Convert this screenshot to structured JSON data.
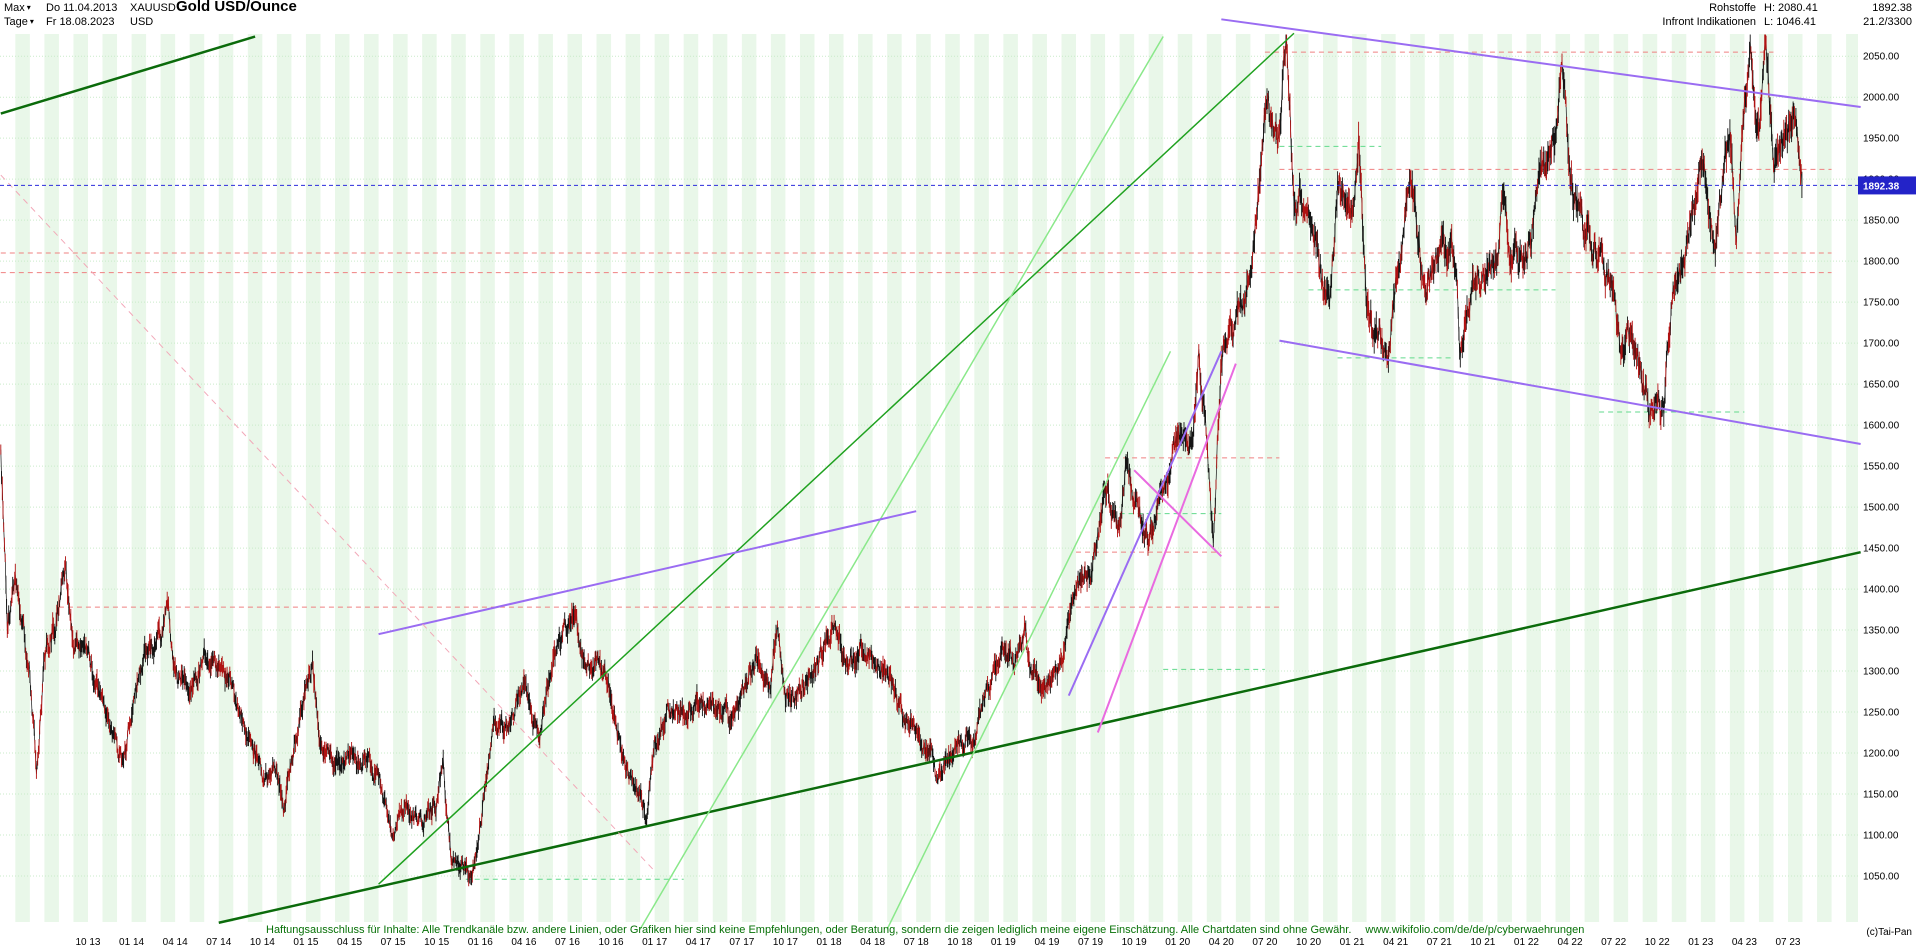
{
  "header": {
    "range_label": "Max",
    "date_from": "Do 11.04.2013",
    "symbol": "XAUUSD",
    "period_label": "Tage",
    "date_to": "Fr 18.08.2023",
    "currency": "USD",
    "title": "Gold USD/Ounce",
    "category": "Rohstoffe",
    "provider": "Infront Indikationen",
    "high_label": "H: 2080.41",
    "low_label": "L: 1046.41",
    "last_price": "1892.38",
    "indication": "21.2/3300"
  },
  "footer": {
    "disclaimer": "Haftungsausschluss für Inhalte: Alle Trendkanäle bzw. andere Linien, oder Grafiken hier sind keine Empfehlungen, oder Beratung, sondern die zeigen lediglich meine eigene Einschätzung. Alle Chartdaten sind ohne Gewähr.",
    "url": "www.wikifolio.com/de/de/p/cyberwaehrungen",
    "copyright": "(c)Tai-Pan"
  },
  "axis": {
    "price_ticks": [
      "2050.00",
      "2000.00",
      "1950.00",
      "1900.00",
      "1850.00",
      "1800.00",
      "1750.00",
      "1700.00",
      "1650.00",
      "1600.00",
      "1550.00",
      "1500.00",
      "1450.00",
      "1400.00",
      "1350.00",
      "1300.00",
      "1250.00",
      "1200.00",
      "1150.00",
      "1100.00",
      "1050.00"
    ],
    "date_ticks": [
      "10 13",
      "01 14",
      "04 14",
      "07 14",
      "10 14",
      "01 15",
      "04 15",
      "07 15",
      "10 15",
      "01 16",
      "04 16",
      "07 16",
      "10 16",
      "01 17",
      "04 17",
      "07 17",
      "10 17",
      "01 18",
      "04 18",
      "07 18",
      "10 18",
      "01 19",
      "04 19",
      "07 19",
      "10 19",
      "01 20",
      "04 20",
      "07 20",
      "10 20",
      "01 21",
      "04 21",
      "07 21",
      "10 21",
      "01 22",
      "04 22",
      "07 22",
      "10 22",
      "01 23",
      "04 23",
      "07 23"
    ],
    "current_price": "1892.38"
  },
  "chart_data": {
    "type": "candlestick",
    "instrument": "XAUUSD",
    "title": "Gold USD/Ounce",
    "period": "daily",
    "x_range": [
      "2013-04-11",
      "2023-08-18"
    ],
    "month_index_origin": "2013-04",
    "y_visible": [
      993,
      2077
    ],
    "high": 2080.41,
    "low": 1046.41,
    "last": 1892.38,
    "monthly_format": [
      "month",
      "close",
      "high_spike(0=none)",
      "low_spike(0=none)"
    ],
    "monthly": [
      [
        "2013-04",
        1560,
        0,
        1355
      ],
      [
        "2013-05",
        1415,
        0,
        0
      ],
      [
        "2013-06",
        1300,
        0,
        1180
      ],
      [
        "2013-07",
        1315,
        0,
        0
      ],
      [
        "2013-08",
        1370,
        1418,
        0
      ],
      [
        "2013-09",
        1330,
        0,
        0
      ],
      [
        "2013-10",
        1335,
        0,
        0
      ],
      [
        "2013-11",
        1255,
        0,
        0
      ],
      [
        "2013-12",
        1210,
        0,
        1182
      ],
      [
        "2014-01",
        1250,
        0,
        0
      ],
      [
        "2014-02",
        1325,
        0,
        0
      ],
      [
        "2014-03",
        1335,
        1385,
        0
      ],
      [
        "2014-04",
        1295,
        0,
        0
      ],
      [
        "2014-05",
        1285,
        0,
        0
      ],
      [
        "2014-06",
        1315,
        0,
        0
      ],
      [
        "2014-07",
        1300,
        0,
        0
      ],
      [
        "2014-08",
        1288,
        0,
        0
      ],
      [
        "2014-09",
        1215,
        0,
        0
      ],
      [
        "2014-10",
        1170,
        0,
        0
      ],
      [
        "2014-11",
        1180,
        0,
        1132
      ],
      [
        "2014-12",
        1185,
        0,
        0
      ],
      [
        "2015-01",
        1280,
        1302,
        0
      ],
      [
        "2015-02",
        1215,
        0,
        0
      ],
      [
        "2015-03",
        1185,
        0,
        0
      ],
      [
        "2015-04",
        1195,
        0,
        0
      ],
      [
        "2015-05",
        1190,
        0,
        0
      ],
      [
        "2015-06",
        1175,
        0,
        0
      ],
      [
        "2015-07",
        1095,
        0,
        0
      ],
      [
        "2015-08",
        1135,
        0,
        0
      ],
      [
        "2015-09",
        1115,
        0,
        0
      ],
      [
        "2015-10",
        1140,
        1190,
        0
      ],
      [
        "2015-11",
        1065,
        0,
        0
      ],
      [
        "2015-12",
        1062,
        0,
        1046
      ],
      [
        "2016-01",
        1115,
        0,
        0
      ],
      [
        "2016-02",
        1235,
        0,
        0
      ],
      [
        "2016-03",
        1235,
        0,
        0
      ],
      [
        "2016-04",
        1290,
        0,
        0
      ],
      [
        "2016-05",
        1215,
        0,
        0
      ],
      [
        "2016-06",
        1320,
        0,
        0
      ],
      [
        "2016-07",
        1350,
        1375,
        0
      ],
      [
        "2016-08",
        1310,
        0,
        0
      ],
      [
        "2016-09",
        1315,
        0,
        0
      ],
      [
        "2016-10",
        1270,
        0,
        0
      ],
      [
        "2016-11",
        1175,
        0,
        0
      ],
      [
        "2016-12",
        1150,
        0,
        1124
      ],
      [
        "2017-01",
        1210,
        0,
        0
      ],
      [
        "2017-02",
        1250,
        0,
        0
      ],
      [
        "2017-03",
        1245,
        0,
        0
      ],
      [
        "2017-04",
        1265,
        0,
        0
      ],
      [
        "2017-05",
        1265,
        0,
        0
      ],
      [
        "2017-06",
        1240,
        0,
        0
      ],
      [
        "2017-07",
        1265,
        0,
        0
      ],
      [
        "2017-08",
        1320,
        0,
        0
      ],
      [
        "2017-09",
        1280,
        1357,
        0
      ],
      [
        "2017-10",
        1270,
        0,
        0
      ],
      [
        "2017-11",
        1275,
        0,
        0
      ],
      [
        "2017-12",
        1300,
        0,
        0
      ],
      [
        "2018-01",
        1345,
        1366,
        0
      ],
      [
        "2018-02",
        1318,
        0,
        0
      ],
      [
        "2018-03",
        1325,
        0,
        0
      ],
      [
        "2018-04",
        1315,
        0,
        0
      ],
      [
        "2018-05",
        1300,
        0,
        0
      ],
      [
        "2018-06",
        1250,
        0,
        0
      ],
      [
        "2018-07",
        1225,
        0,
        0
      ],
      [
        "2018-08",
        1200,
        0,
        1160
      ],
      [
        "2018-09",
        1190,
        0,
        0
      ],
      [
        "2018-10",
        1215,
        0,
        0
      ],
      [
        "2018-11",
        1220,
        0,
        0
      ],
      [
        "2018-12",
        1280,
        0,
        0
      ],
      [
        "2019-01",
        1320,
        0,
        0
      ],
      [
        "2019-02",
        1315,
        1346,
        0
      ],
      [
        "2019-03",
        1290,
        0,
        0
      ],
      [
        "2019-04",
        1285,
        0,
        0
      ],
      [
        "2019-05",
        1305,
        0,
        0
      ],
      [
        "2019-06",
        1410,
        0,
        0
      ],
      [
        "2019-07",
        1425,
        1450,
        0
      ],
      [
        "2019-08",
        1525,
        0,
        0
      ],
      [
        "2019-09",
        1470,
        1557,
        0
      ],
      [
        "2019-10",
        1510,
        0,
        0
      ],
      [
        "2019-11",
        1460,
        0,
        0
      ],
      [
        "2019-12",
        1515,
        0,
        0
      ],
      [
        "2020-01",
        1590,
        0,
        0
      ],
      [
        "2020-02",
        1585,
        1689,
        0
      ],
      [
        "2020-03",
        1575,
        0,
        1451
      ],
      [
        "2020-04",
        1685,
        0,
        0
      ],
      [
        "2020-05",
        1730,
        0,
        0
      ],
      [
        "2020-06",
        1780,
        0,
        0
      ],
      [
        "2020-07",
        1975,
        0,
        0
      ],
      [
        "2020-08",
        1965,
        2075,
        0
      ],
      [
        "2020-09",
        1885,
        0,
        0
      ],
      [
        "2020-10",
        1880,
        0,
        0
      ],
      [
        "2020-11",
        1775,
        0,
        1765
      ],
      [
        "2020-12",
        1895,
        0,
        0
      ],
      [
        "2021-01",
        1850,
        1959,
        0
      ],
      [
        "2021-02",
        1735,
        0,
        0
      ],
      [
        "2021-03",
        1710,
        0,
        1677
      ],
      [
        "2021-04",
        1770,
        0,
        0
      ],
      [
        "2021-05",
        1905,
        0,
        0
      ],
      [
        "2021-06",
        1770,
        0,
        0
      ],
      [
        "2021-07",
        1815,
        0,
        0
      ],
      [
        "2021-08",
        1815,
        0,
        1690
      ],
      [
        "2021-09",
        1755,
        0,
        0
      ],
      [
        "2021-10",
        1785,
        0,
        0
      ],
      [
        "2021-11",
        1790,
        1877,
        0
      ],
      [
        "2021-12",
        1805,
        0,
        0
      ],
      [
        "2022-01",
        1795,
        0,
        0
      ],
      [
        "2022-02",
        1905,
        0,
        0
      ],
      [
        "2022-03",
        1940,
        2070,
        0
      ],
      [
        "2022-04",
        1895,
        0,
        0
      ],
      [
        "2022-05",
        1840,
        0,
        0
      ],
      [
        "2022-06",
        1805,
        0,
        0
      ],
      [
        "2022-07",
        1765,
        0,
        1680
      ],
      [
        "2022-08",
        1710,
        0,
        0
      ],
      [
        "2022-09",
        1660,
        0,
        1615
      ],
      [
        "2022-10",
        1640,
        0,
        1618
      ],
      [
        "2022-11",
        1750,
        0,
        0
      ],
      [
        "2022-12",
        1815,
        0,
        0
      ],
      [
        "2023-01",
        1930,
        0,
        0
      ],
      [
        "2023-02",
        1825,
        0,
        0
      ],
      [
        "2023-03",
        1970,
        0,
        1810
      ],
      [
        "2023-04",
        1990,
        2048,
        0
      ],
      [
        "2023-05",
        1960,
        2062,
        0
      ],
      [
        "2023-06",
        1920,
        0,
        0
      ],
      [
        "2023-07",
        1955,
        1987,
        0
      ],
      [
        "2023-08",
        1892,
        0,
        0
      ]
    ],
    "levels": [
      {
        "v": 2055,
        "m1": 87,
        "m2": 122,
        "c": "red"
      },
      {
        "v": 1912,
        "m1": 88,
        "m2": 126,
        "c": "red"
      },
      {
        "v": 1810,
        "m1": 0,
        "m2": 126,
        "c": "red"
      },
      {
        "v": 1786,
        "m1": 0,
        "m2": 126,
        "c": "red"
      },
      {
        "v": 1378,
        "m1": 4,
        "m2": 88,
        "c": "red"
      },
      {
        "v": 1560,
        "m1": 76,
        "m2": 88,
        "c": "red"
      },
      {
        "v": 1445,
        "m1": 74,
        "m2": 84,
        "c": "red"
      },
      {
        "v": 1046,
        "m1": 32,
        "m2": 47,
        "c": "green"
      },
      {
        "v": 1302,
        "m1": 80,
        "m2": 87,
        "c": "green"
      },
      {
        "v": 1492,
        "m1": 77,
        "m2": 84,
        "c": "green"
      },
      {
        "v": 1616,
        "m1": 110,
        "m2": 120,
        "c": "green"
      },
      {
        "v": 1682,
        "m1": 92,
        "m2": 100,
        "c": "green"
      },
      {
        "v": 1765,
        "m1": 90,
        "m2": 107,
        "c": "green"
      },
      {
        "v": 1940,
        "m1": 88,
        "m2": 95,
        "c": "green"
      }
    ],
    "trendlines": [
      {
        "m1": 15,
        "v1": 993,
        "m2": 128,
        "v2": 1445,
        "c": "darkgreen",
        "w": 2.5
      },
      {
        "m1": 0,
        "v1": 1980,
        "m2": 17.5,
        "v2": 2074,
        "c": "darkgreen",
        "w": 2.5
      },
      {
        "m1": 26,
        "v1": 1040,
        "m2": 89,
        "v2": 2078,
        "c": "green",
        "w": 1.5
      },
      {
        "m1": 44,
        "v1": 985,
        "m2": 80,
        "v2": 2074,
        "c": "palegreen",
        "w": 1.5
      },
      {
        "m1": 61,
        "v1": 985,
        "m2": 80.5,
        "v2": 1690,
        "c": "palegreen",
        "w": 1.5
      },
      {
        "m1": 26,
        "v1": 1345,
        "m2": 63,
        "v2": 1495,
        "c": "violet",
        "w": 2
      },
      {
        "m1": 73.5,
        "v1": 1270,
        "m2": 84,
        "v2": 1690,
        "c": "violet",
        "w": 2
      },
      {
        "m1": 75.5,
        "v1": 1225,
        "m2": 85,
        "v2": 1675,
        "c": "magenta",
        "w": 2
      },
      {
        "m1": 78,
        "v1": 1545,
        "m2": 84,
        "v2": 1440,
        "c": "magenta",
        "w": 2
      },
      {
        "m1": 84,
        "v1": 2095,
        "m2": 128,
        "v2": 1988,
        "c": "violet",
        "w": 2
      },
      {
        "m1": 88,
        "v1": 1703,
        "m2": 128,
        "v2": 1577,
        "c": "violet",
        "w": 2
      },
      {
        "m1": 0,
        "v1": 1905,
        "m2": 45,
        "v2": 1056,
        "c": "pink",
        "w": 1,
        "dash": true
      }
    ],
    "colors": {
      "stripe": "#e9f7e9",
      "grid": "#c9ebc9",
      "levelRed": "#ef8080",
      "levelGreen": "#62da8c",
      "darkgreen": "#0b6b0b",
      "green": "#1fa11f",
      "palegreen": "#8ae88a",
      "violet": "#9a6cf2",
      "magenta": "#e96ae0",
      "pink": "#f2a8b8",
      "blue": "#2c2cdc",
      "badge": "#2323c8",
      "candleBlack": "#141414",
      "candleRed": "#b01212"
    }
  }
}
